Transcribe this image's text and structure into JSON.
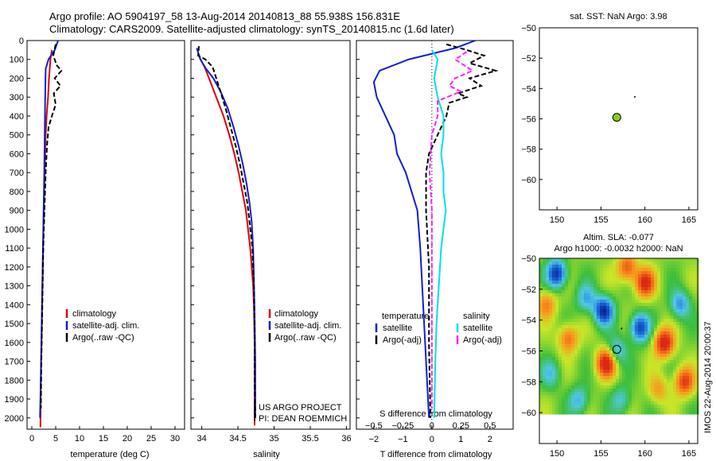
{
  "header": {
    "line1": "Argo profile: AO 5904197_58 13-Aug-2014 20140813_88 55.938S 156.831E",
    "line2": "Climatology: CARS2009. Satellite-adjusted climatology: synTS_20140815.nc (1.6d later)"
  },
  "colors": {
    "climatology": "#e00000",
    "satellite": "#1020d0",
    "argo": "#000000",
    "salinity_sat": "#00e0e8",
    "salinity_argo": "#ff20ff",
    "float_marker": "#88cc22"
  },
  "chart_data": [
    {
      "id": "temperature",
      "type": "line",
      "xlabel": "temperature (deg C)",
      "ylabel": "",
      "xlim": [
        -1,
        32
      ],
      "ylim": [
        2060,
        0
      ],
      "xticks": [
        0,
        5,
        10,
        15,
        20,
        25,
        30
      ],
      "yticks": [
        0,
        100,
        200,
        300,
        400,
        500,
        600,
        700,
        800,
        900,
        1000,
        1100,
        1200,
        1300,
        1400,
        1500,
        1600,
        1700,
        1800,
        1900,
        2000
      ],
      "legend": [
        "climatology",
        "satellite-adj. clim.",
        "Argo(..raw -QC)"
      ],
      "series": [
        {
          "name": "climatology",
          "style": "solid",
          "color": "#e00000",
          "points": [
            [
              4.2,
              50
            ],
            [
              3.9,
              100
            ],
            [
              3.6,
              200
            ],
            [
              3.4,
              300
            ],
            [
              3.1,
              400
            ],
            [
              2.9,
              500
            ],
            [
              2.7,
              700
            ],
            [
              2.5,
              900
            ],
            [
              2.3,
              1200
            ],
            [
              2.1,
              1500
            ],
            [
              1.9,
              1800
            ],
            [
              1.8,
              2050
            ]
          ]
        },
        {
          "name": "satellite-adj. clim.",
          "style": "solid",
          "color": "#1020d0",
          "points": [
            [
              5.5,
              0
            ],
            [
              4.8,
              50
            ],
            [
              3.5,
              100
            ],
            [
              2.9,
              150
            ],
            [
              2.8,
              300
            ],
            [
              2.7,
              500
            ],
            [
              2.6,
              700
            ],
            [
              2.4,
              1000
            ],
            [
              2.2,
              1300
            ],
            [
              2.0,
              1600
            ],
            [
              1.8,
              1900
            ],
            [
              1.7,
              2000
            ]
          ]
        },
        {
          "name": "Argo(..raw -QC)",
          "style": "dashed",
          "color": "#000000",
          "points": [
            [
              5.0,
              20
            ],
            [
              4.5,
              80
            ],
            [
              5.2,
              130
            ],
            [
              6.2,
              160
            ],
            [
              4.8,
              200
            ],
            [
              6.0,
              240
            ],
            [
              4.6,
              280
            ],
            [
              5.0,
              340
            ],
            [
              4.2,
              400
            ],
            [
              3.5,
              460
            ],
            [
              3.2,
              550
            ],
            [
              2.9,
              700
            ],
            [
              2.7,
              850
            ],
            [
              2.4,
              1100
            ],
            [
              2.2,
              1400
            ],
            [
              2.0,
              1700
            ],
            [
              1.9,
              1950
            ]
          ]
        }
      ]
    },
    {
      "id": "salinity",
      "type": "line",
      "xlabel": "salinity",
      "ylabel": "",
      "xlim": [
        33.85,
        36.05
      ],
      "ylim": [
        2060,
        0
      ],
      "xticks": [
        34,
        34.5,
        35,
        35.5,
        36
      ],
      "xticklabels": [
        "34",
        "34.5",
        "35",
        "35.5",
        "36"
      ],
      "legend": [
        "climatology",
        "satellite-adj. clim.",
        "Argo(..raw -QC)"
      ],
      "annotation": [
        "US ARGO PROJECT",
        "PI: DEAN ROEMMICH"
      ],
      "series": [
        {
          "name": "climatology",
          "style": "solid",
          "color": "#e00000",
          "points": [
            [
              33.97,
              90
            ],
            [
              34.05,
              150
            ],
            [
              34.12,
              220
            ],
            [
              34.2,
              300
            ],
            [
              34.3,
              400
            ],
            [
              34.38,
              500
            ],
            [
              34.45,
              600
            ],
            [
              34.51,
              700
            ],
            [
              34.56,
              800
            ],
            [
              34.61,
              900
            ],
            [
              34.64,
              1000
            ],
            [
              34.67,
              1100
            ],
            [
              34.69,
              1200
            ],
            [
              34.71,
              1300
            ],
            [
              34.72,
              1400
            ],
            [
              34.73,
              1600
            ],
            [
              34.73,
              2040
            ]
          ]
        },
        {
          "name": "satellite-adj. clim.",
          "style": "solid",
          "color": "#1020d0",
          "points": [
            [
              33.93,
              40
            ],
            [
              33.98,
              100
            ],
            [
              34.06,
              150
            ],
            [
              34.16,
              200
            ],
            [
              34.26,
              270
            ],
            [
              34.36,
              360
            ],
            [
              34.44,
              460
            ],
            [
              34.51,
              560
            ],
            [
              34.57,
              660
            ],
            [
              34.62,
              760
            ],
            [
              34.66,
              860
            ],
            [
              34.69,
              960
            ],
            [
              34.71,
              1100
            ],
            [
              34.72,
              1250
            ],
            [
              34.73,
              1450
            ],
            [
              34.74,
              1700
            ],
            [
              34.74,
              2000
            ]
          ]
        },
        {
          "name": "Argo(..raw -QC)",
          "style": "dashed",
          "color": "#000000",
          "points": [
            [
              33.96,
              30
            ],
            [
              33.95,
              80
            ],
            [
              34.05,
              100
            ],
            [
              34.15,
              140
            ],
            [
              34.2,
              200
            ],
            [
              34.25,
              260
            ],
            [
              34.33,
              360
            ],
            [
              34.4,
              460
            ],
            [
              34.47,
              560
            ],
            [
              34.53,
              660
            ],
            [
              34.58,
              760
            ],
            [
              34.63,
              860
            ],
            [
              34.66,
              960
            ],
            [
              34.7,
              1100
            ],
            [
              34.72,
              1300
            ],
            [
              34.73,
              1500
            ],
            [
              34.73,
              1800
            ],
            [
              34.74,
              2000
            ]
          ]
        }
      ]
    },
    {
      "id": "difference",
      "type": "line",
      "xlabel": "T difference from climatology",
      "xlabel_top": "S difference from climatology",
      "ylabel": "",
      "xlim": [
        -2.6,
        2.8
      ],
      "ylim": [
        2060,
        0
      ],
      "xticks": [
        -2,
        -1,
        0,
        1,
        2
      ],
      "s_xlim": [
        -0.65,
        0.7
      ],
      "s_xticks": [
        -0.5,
        -0.25,
        0,
        0.25,
        0.5
      ],
      "legend_temperature": [
        "temperature",
        "satellite",
        "Argo(-adj)"
      ],
      "legend_salinity": [
        "salinity",
        "satellite",
        "Argo(-adj)"
      ],
      "series": [
        {
          "name": "temperature satellite",
          "axis": "T",
          "style": "solid",
          "color": "#1020d0",
          "points": [
            [
              1.5,
              0
            ],
            [
              0.8,
              40
            ],
            [
              0,
              70
            ],
            [
              -0.8,
              100
            ],
            [
              -1.8,
              160
            ],
            [
              -2.0,
              220
            ],
            [
              -1.9,
              300
            ],
            [
              -1.6,
              400
            ],
            [
              -1.3,
              500
            ],
            [
              -1.2,
              600
            ],
            [
              -0.9,
              700
            ],
            [
              -0.7,
              800
            ],
            [
              -0.5,
              900
            ],
            [
              -0.4,
              1100
            ],
            [
              -0.3,
              1400
            ],
            [
              -0.2,
              1700
            ],
            [
              -0.1,
              2000
            ]
          ]
        },
        {
          "name": "temperature Argo(-adj)",
          "axis": "T",
          "style": "dashed",
          "color": "#000000",
          "points": [
            [
              0.5,
              20
            ],
            [
              1.2,
              50
            ],
            [
              1.8,
              80
            ],
            [
              1.3,
              120
            ],
            [
              2.2,
              160
            ],
            [
              1.3,
              200
            ],
            [
              1.7,
              240
            ],
            [
              0.9,
              280
            ],
            [
              1.2,
              300
            ],
            [
              0.6,
              330
            ],
            [
              0.5,
              400
            ],
            [
              0.2,
              500
            ],
            [
              -0.1,
              600
            ],
            [
              -0.2,
              700
            ],
            [
              -0.2,
              900
            ],
            [
              -0.1,
              1200
            ],
            [
              -0.1,
              1600
            ],
            [
              -0.05,
              2000
            ]
          ]
        },
        {
          "name": "salinity satellite",
          "axis": "S",
          "style": "solid",
          "color": "#00e0e8",
          "points": [
            [
              0,
              50
            ],
            [
              0.05,
              100
            ],
            [
              0.02,
              200
            ],
            [
              0.05,
              300
            ],
            [
              0.1,
              400
            ],
            [
              0.1,
              500
            ],
            [
              0.08,
              600
            ],
            [
              0.1,
              700
            ],
            [
              0.1,
              800
            ],
            [
              0.12,
              900
            ],
            [
              0.1,
              1000
            ],
            [
              0.08,
              1100
            ],
            [
              0.06,
              1300
            ],
            [
              0.04,
              1500
            ],
            [
              0.03,
              1700
            ],
            [
              0.02,
              2000
            ]
          ]
        },
        {
          "name": "salinity Argo(-adj)",
          "axis": "S",
          "style": "dashed",
          "color": "#ff20ff",
          "points": [
            [
              0.3,
              60
            ],
            [
              0.2,
              100
            ],
            [
              0.35,
              160
            ],
            [
              0.2,
              200
            ],
            [
              0.15,
              240
            ],
            [
              0.25,
              270
            ],
            [
              0.05,
              320
            ],
            [
              0.05,
              400
            ],
            [
              0,
              500
            ],
            [
              -0.02,
              700
            ],
            [
              0,
              900
            ],
            [
              0,
              1200
            ],
            [
              0,
              1600
            ],
            [
              0,
              1950
            ]
          ]
        }
      ]
    },
    {
      "id": "sst_map",
      "type": "scatter",
      "title": "sat. SST: NaN Argo: 3.98",
      "xlim": [
        148,
        166
      ],
      "ylim": [
        -62,
        -50
      ],
      "xticks": [
        150,
        155,
        160,
        165
      ],
      "yticks": [
        -50,
        -52,
        -54,
        -56,
        -58,
        -60
      ],
      "points": [
        [
          156.8,
          -55.9
        ]
      ],
      "track": [
        [
          158.8,
          -54.6
        ],
        [
          158.9,
          -54.5
        ]
      ]
    },
    {
      "id": "sla_map",
      "type": "heatmap",
      "title": [
        "Altim. SLA: -0.077",
        "Argo h1000: -0.0032 h2000: NaN"
      ],
      "xlim": [
        148,
        166
      ],
      "ylim": [
        -62,
        -50
      ],
      "xticks": [
        150,
        155,
        160,
        165
      ],
      "yticks": [
        -50,
        -52,
        -54,
        -56,
        -58,
        -60
      ],
      "field_extent": {
        "x": [
          148,
          166
        ],
        "y": [
          -60,
          -50
        ]
      },
      "points": [
        [
          156.8,
          -55.9
        ]
      ],
      "track": [
        [
          157.3,
          -54.6
        ],
        [
          157.4,
          -54.5
        ]
      ],
      "side_label": "IMOS 22-Aug-2014 20:00:37",
      "blobs": [
        {
          "x": 150.0,
          "y": -51.0,
          "v": -1.0
        },
        {
          "x": 155.3,
          "y": -53.4,
          "v": -1.0
        },
        {
          "x": 153.3,
          "y": -52.6,
          "v": -0.5
        },
        {
          "x": 156.8,
          "y": -56.0,
          "v": -0.5
        },
        {
          "x": 159.4,
          "y": -54.5,
          "v": -0.9
        },
        {
          "x": 160.0,
          "y": -51.6,
          "v": 0.9
        },
        {
          "x": 162.2,
          "y": -55.5,
          "v": 1.0
        },
        {
          "x": 155.6,
          "y": -56.8,
          "v": 1.0
        },
        {
          "x": 151.3,
          "y": -55.2,
          "v": 0.6
        },
        {
          "x": 158.0,
          "y": -50.6,
          "v": 0.7
        },
        {
          "x": 149.3,
          "y": -57.5,
          "v": -0.4
        },
        {
          "x": 152.5,
          "y": -59.2,
          "v": -0.5
        },
        {
          "x": 157.3,
          "y": -59.2,
          "v": -0.4
        },
        {
          "x": 164.0,
          "y": -53.0,
          "v": -0.6
        },
        {
          "x": 164.5,
          "y": -58.0,
          "v": 0.8
        },
        {
          "x": 161.5,
          "y": -58.5,
          "v": 0.4
        },
        {
          "x": 148.8,
          "y": -53.0,
          "v": 0.5
        }
      ]
    }
  ]
}
